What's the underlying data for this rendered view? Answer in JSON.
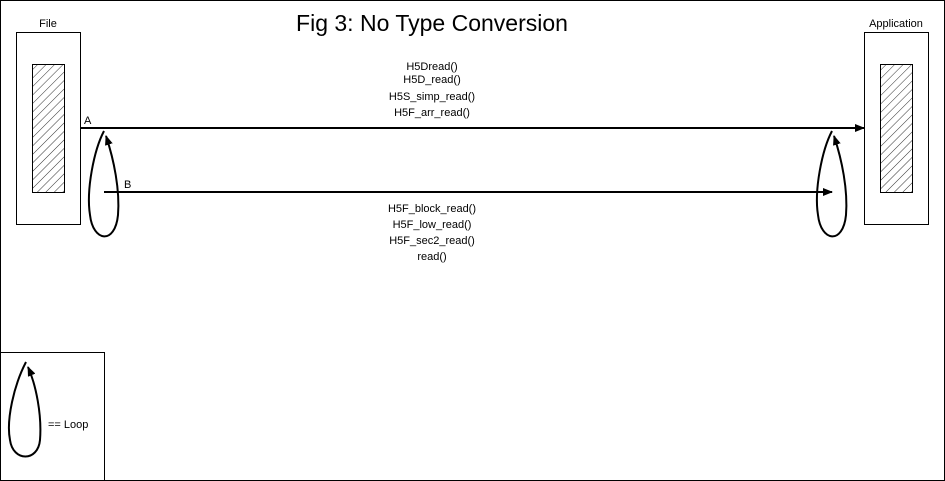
{
  "title": "Fig 3:  No Type Conversion",
  "file_label": "File",
  "application_label": "Application",
  "point_a": "A",
  "point_b": "B",
  "upper_calls": [
    "H5Dread()",
    "H5D_read()",
    "H5S_simp_read()",
    "H5F_arr_read()"
  ],
  "lower_calls": [
    "H5F_block_read()",
    "H5F_low_read()",
    "H5F_sec2_read()",
    "read()"
  ],
  "legend_label": "== Loop"
}
